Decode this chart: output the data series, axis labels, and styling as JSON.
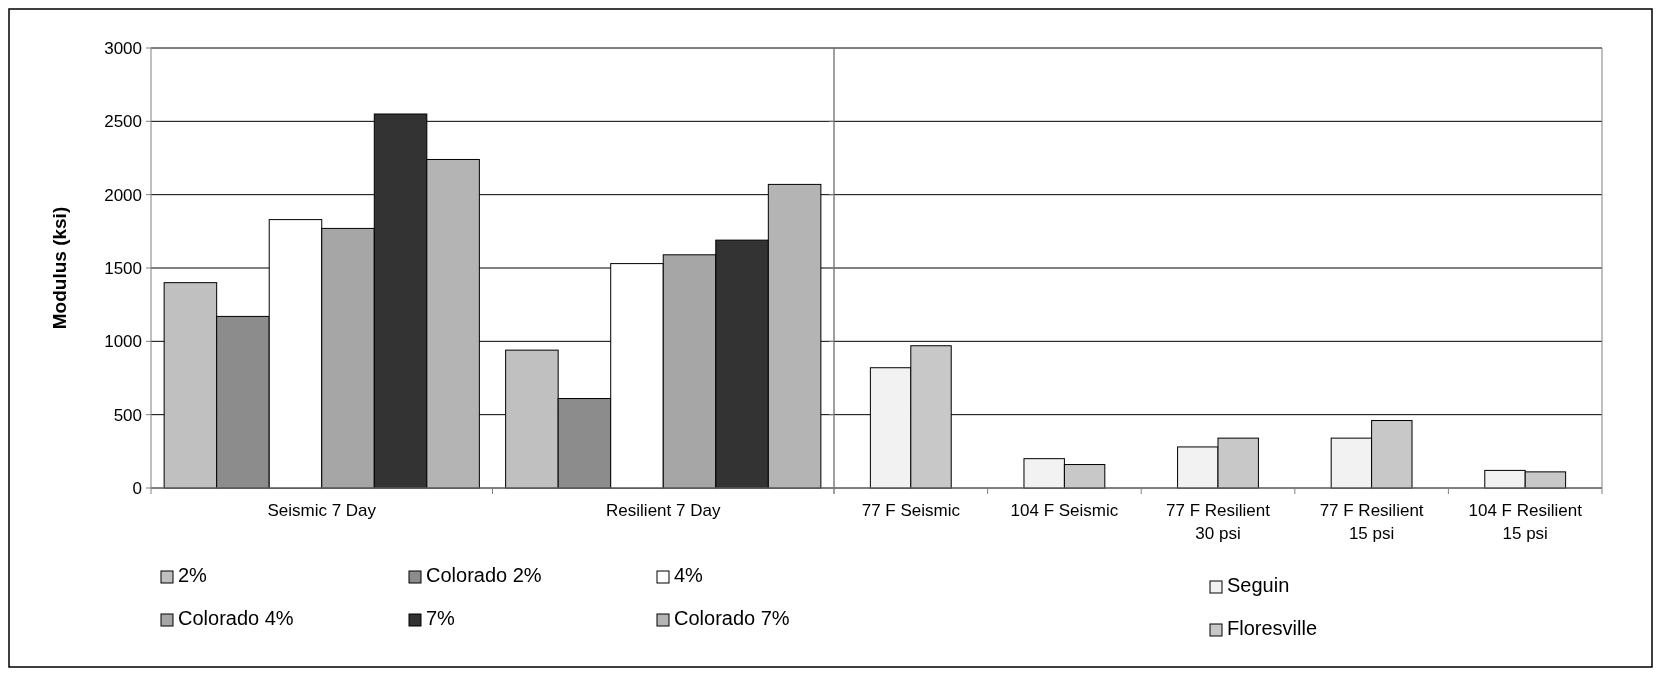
{
  "chart_data": [
    {
      "type": "bar",
      "ylabel": "Modulus (ksi)",
      "categories": [
        "Seismic 7 Day",
        "Resilient 7 Day"
      ],
      "ylim": [
        0,
        3000
      ],
      "yticks": [
        0,
        500,
        1000,
        1500,
        2000,
        2500,
        3000
      ],
      "grid": "y",
      "legend": "bottom",
      "series": [
        {
          "name": "2%",
          "color": "#c0c0c0",
          "values": [
            1400,
            940
          ]
        },
        {
          "name": "Colorado 2%",
          "color": "#8c8c8c",
          "values": [
            1170,
            610
          ]
        },
        {
          "name": "4%",
          "color": "#ffffff",
          "values": [
            1830,
            1530
          ]
        },
        {
          "name": "Colorado 4%",
          "color": "#a6a6a6",
          "values": [
            1770,
            1590
          ]
        },
        {
          "name": "7%",
          "color": "#333333",
          "values": [
            2550,
            1690
          ]
        },
        {
          "name": "Colorado 7%",
          "color": "#b4b4b4",
          "values": [
            2240,
            2070
          ]
        }
      ]
    },
    {
      "type": "bar",
      "categories": [
        "77 F Seismic",
        "104 F Seismic",
        "77 F Resilient 30 psi",
        "77 F Resilient 15 psi",
        "104 F Resilient 15 psi"
      ],
      "ylim": [
        0,
        3000
      ],
      "yticks": [
        0,
        500,
        1000,
        1500,
        2000,
        2500,
        3000
      ],
      "grid": "y",
      "tick_labels": "x",
      "legend": "bottom",
      "series": [
        {
          "name": "Seguin",
          "color": "#f2f2f2",
          "values": [
            820,
            200,
            280,
            340,
            120
          ]
        },
        {
          "name": "Floresville",
          "color": "#c8c8c8",
          "values": [
            970,
            160,
            340,
            460,
            110
          ]
        }
      ]
    }
  ]
}
